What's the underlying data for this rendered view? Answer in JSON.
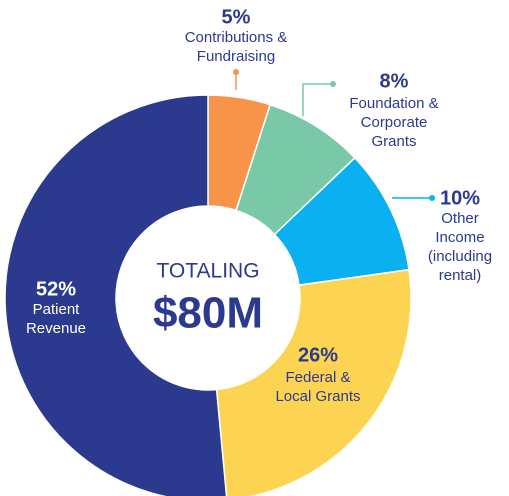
{
  "chart_data": {
    "type": "donut",
    "categories": [
      [
        "Contributions &",
        "Fundraising"
      ],
      [
        "Foundation &",
        "Corporate",
        "Grants"
      ],
      [
        "Other",
        "Income",
        "(including",
        "rental)"
      ],
      [
        "Federal &",
        "Local Grants"
      ],
      [
        "Patient",
        "Revenue"
      ]
    ],
    "values": [
      5,
      8,
      10,
      26,
      52
    ],
    "value_labels": [
      "5%",
      "8%",
      "10%",
      "26%",
      "52%"
    ],
    "colors": [
      "#f7944a",
      "#79c9a8",
      "#0ab0ef",
      "#fdd452",
      "#2b3a8f"
    ],
    "center_text": [
      "TOTALING",
      "$80M"
    ]
  }
}
